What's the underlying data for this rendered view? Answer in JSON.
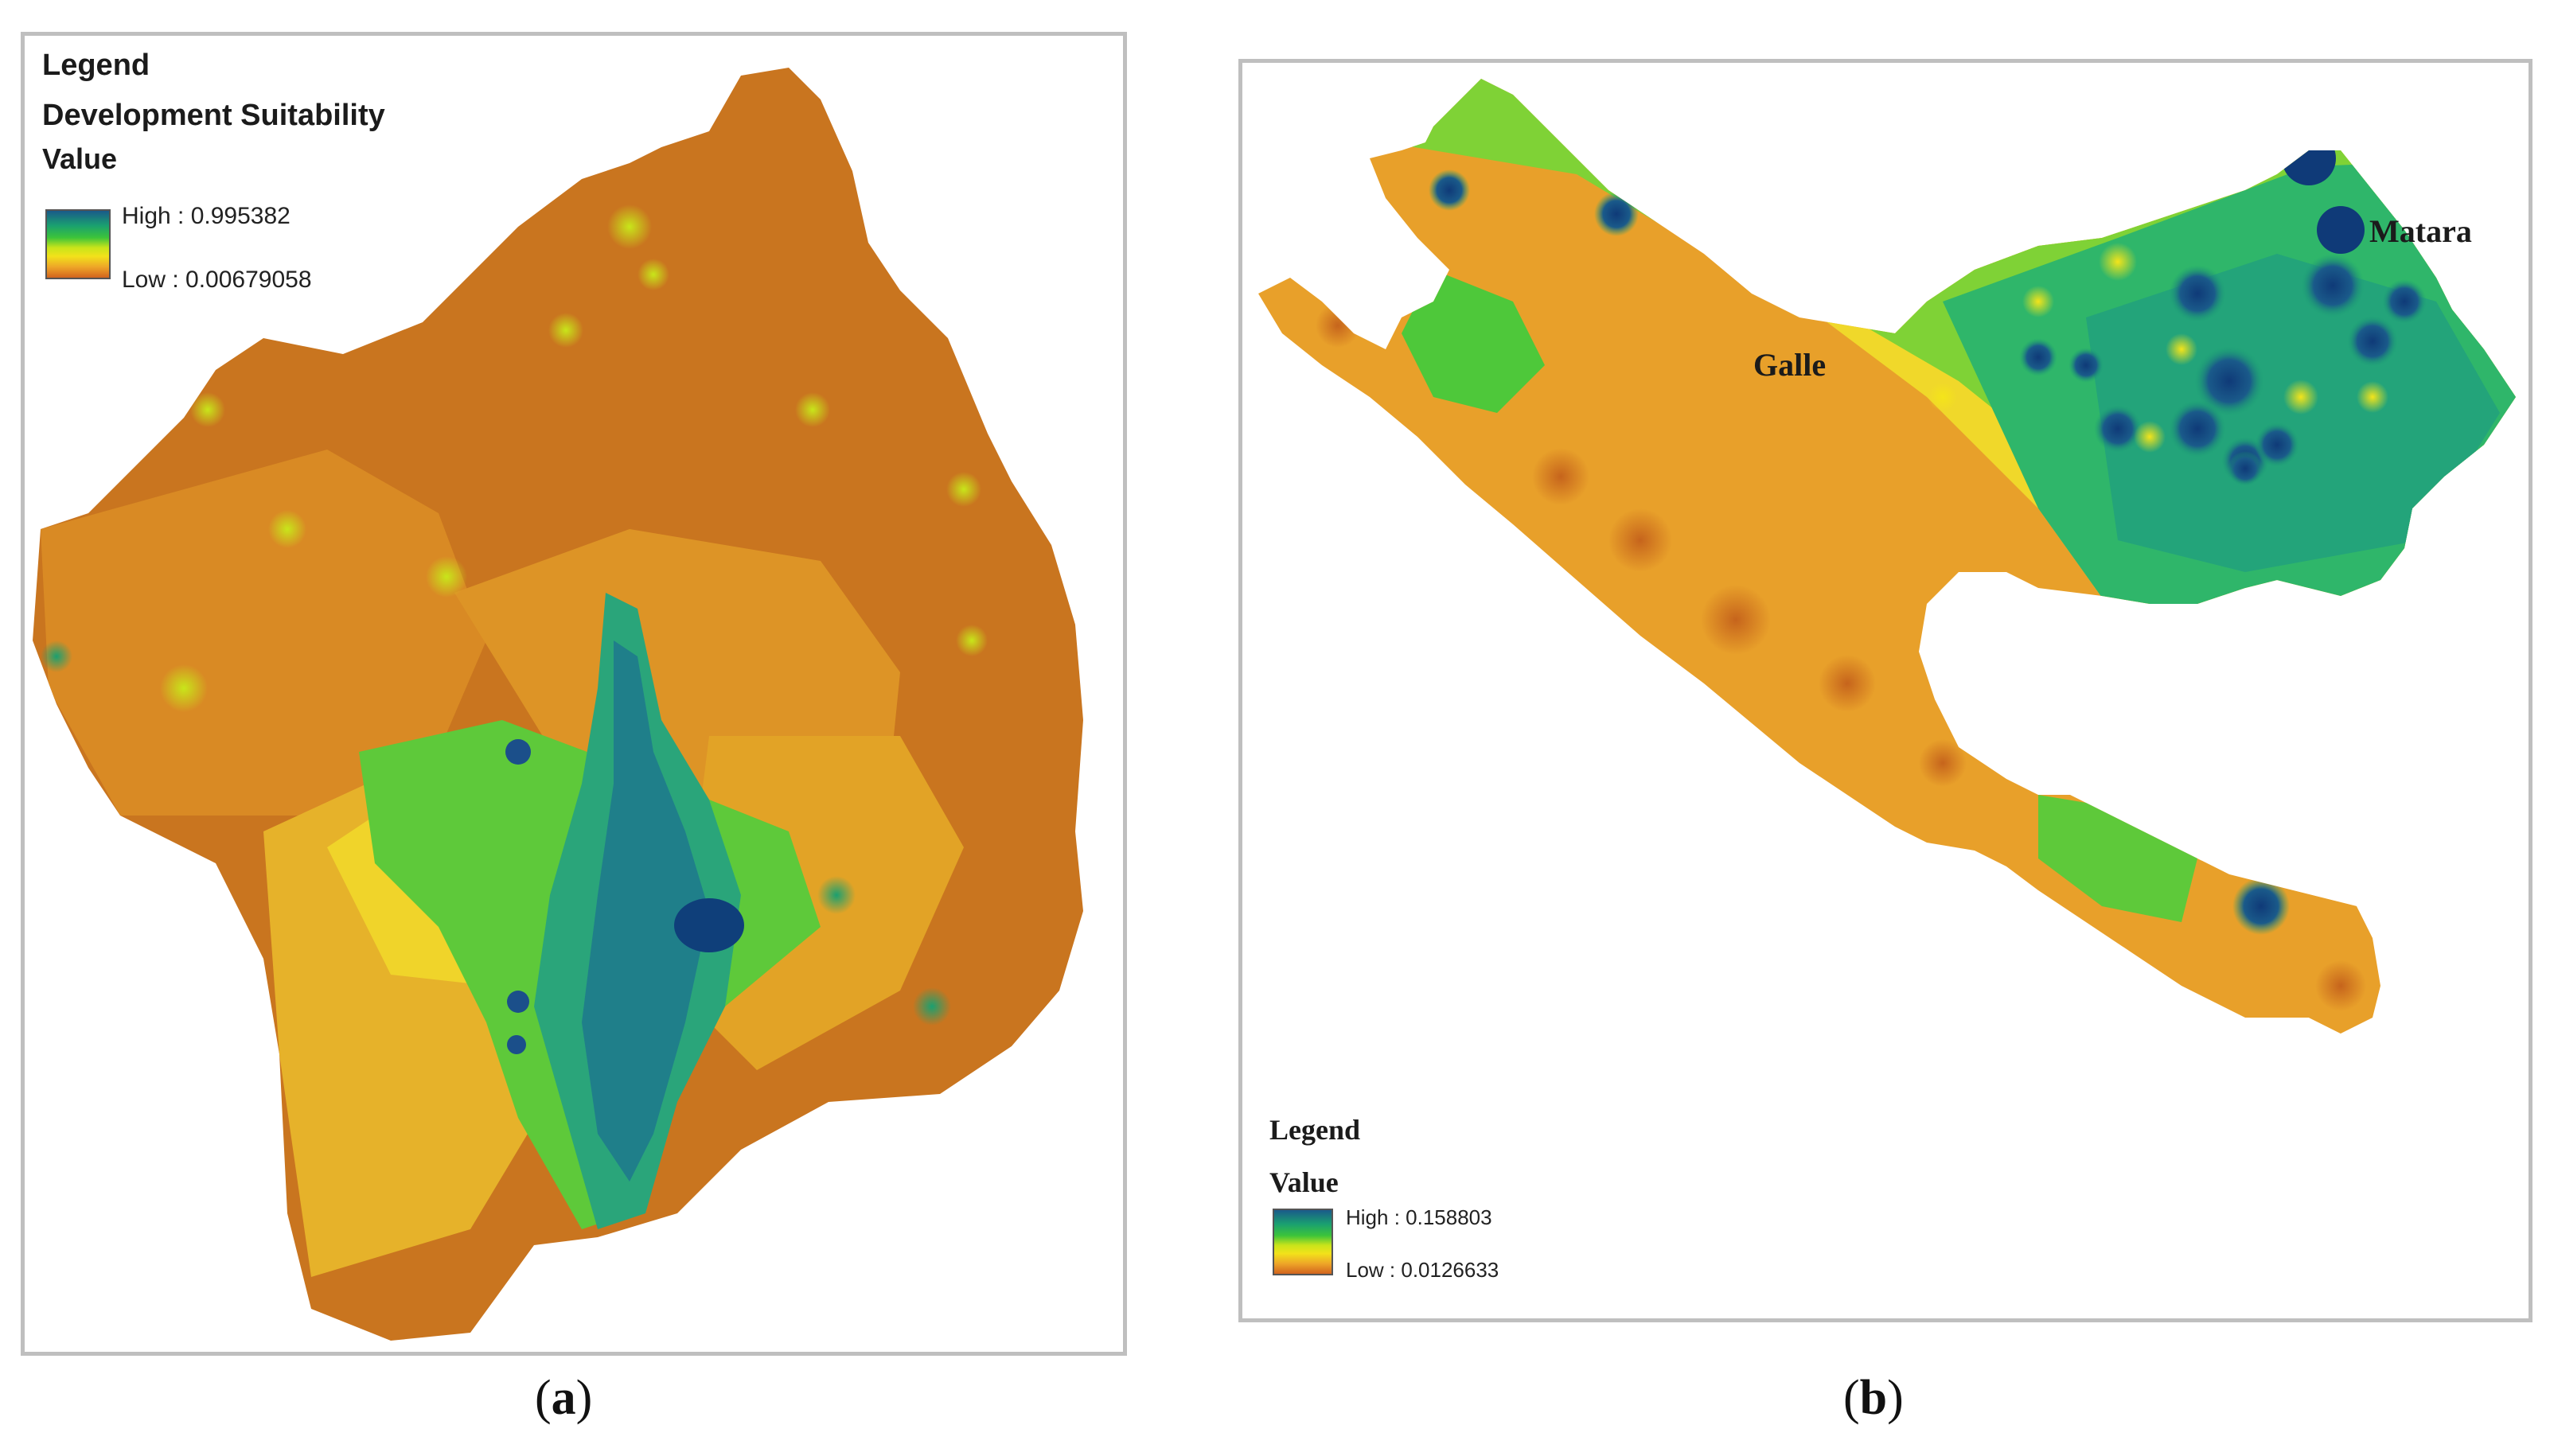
{
  "panel_a": {
    "legend_title": "Legend",
    "layer_name": "Development Suitability",
    "value_label": "Value",
    "high_label": "High : 0.995382",
    "low_label": "Low : 0.00679058",
    "caption": {
      "open": "(",
      "letter": "a",
      "close": ")"
    }
  },
  "panel_b": {
    "legend_title": "Legend",
    "value_label": "Value",
    "high_label": "High : 0.158803",
    "low_label": "Low : 0.0126633",
    "places": {
      "galle": "Galle",
      "matara": "Matara"
    },
    "caption": {
      "open": "(",
      "letter": "b",
      "close": ")"
    }
  },
  "colors": {
    "high": "#1a5a8a",
    "mid_high": "#1aa070",
    "mid": "#3cc43a",
    "mid_low": "#f2e21a",
    "low": "#d2641e",
    "frame": "#bfbfbf"
  }
}
